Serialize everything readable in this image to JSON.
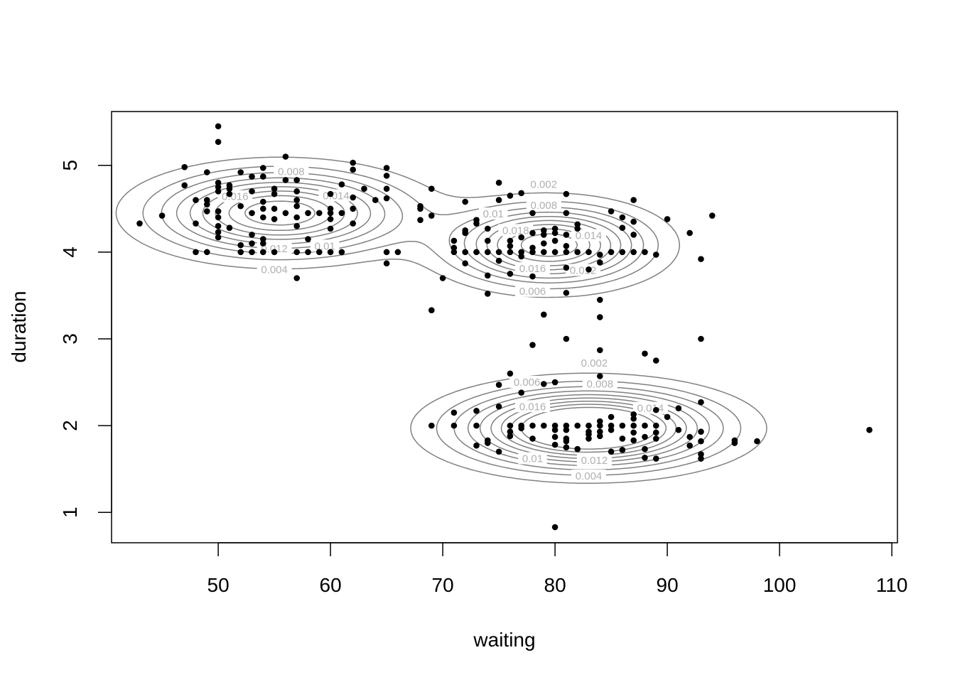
{
  "chart_data": {
    "type": "scatter",
    "title": "",
    "xlabel": "waiting",
    "ylabel": "duration",
    "xlim": [
      40.5,
      110.5
    ],
    "ylim": [
      0.65,
      5.62
    ],
    "x_ticks": [
      50,
      60,
      70,
      80,
      90,
      100,
      110
    ],
    "y_ticks": [
      1,
      2,
      3,
      4,
      5
    ],
    "grid": false,
    "legend": "none",
    "point_color": "#000000",
    "contour_color": "#808080",
    "contour_label_color": "#b0b0b0",
    "contour_components": [
      {
        "center": [
          55.5,
          4.45
        ],
        "sd": [
          6.8,
          0.3
        ],
        "weight": 0.2
      },
      {
        "center": [
          79.5,
          4.08
        ],
        "sd": [
          5.4,
          0.28
        ],
        "weight": 0.2
      },
      {
        "center": [
          83.0,
          1.97
        ],
        "sd": [
          7.0,
          0.28
        ],
        "weight": 0.26
      }
    ],
    "contour_levels": [
      0.002,
      0.004,
      0.006,
      0.008,
      0.01,
      0.012,
      0.014,
      0.016,
      0.018
    ],
    "contour_labels": [
      {
        "text": "0.008",
        "x": 56.5,
        "y": 4.93
      },
      {
        "text": "0.016",
        "x": 51.5,
        "y": 4.64
      },
      {
        "text": "0.014",
        "x": 60.5,
        "y": 4.65
      },
      {
        "text": "0.012",
        "x": 55.0,
        "y": 4.04
      },
      {
        "text": "0.01",
        "x": 59.5,
        "y": 4.07
      },
      {
        "text": "0.004",
        "x": 55.0,
        "y": 3.8
      },
      {
        "text": "0.002",
        "x": 79.0,
        "y": 4.78
      },
      {
        "text": "0.008",
        "x": 79.0,
        "y": 4.54
      },
      {
        "text": "0.01",
        "x": 74.5,
        "y": 4.44
      },
      {
        "text": "0.018",
        "x": 76.5,
        "y": 4.25
      },
      {
        "text": "0.014",
        "x": 83.0,
        "y": 4.19
      },
      {
        "text": "0.016",
        "x": 78.0,
        "y": 3.81
      },
      {
        "text": "0.012",
        "x": 82.5,
        "y": 3.79
      },
      {
        "text": "0.006",
        "x": 78.0,
        "y": 3.55
      },
      {
        "text": "0.002",
        "x": 83.5,
        "y": 2.72
      },
      {
        "text": "0.006",
        "x": 77.5,
        "y": 2.5
      },
      {
        "text": "0.008",
        "x": 84.0,
        "y": 2.48
      },
      {
        "text": "0.016",
        "x": 78.0,
        "y": 2.22
      },
      {
        "text": "0.014",
        "x": 88.5,
        "y": 2.2
      },
      {
        "text": "0.01",
        "x": 78.0,
        "y": 1.62
      },
      {
        "text": "0.012",
        "x": 83.5,
        "y": 1.6
      },
      {
        "text": "0.004",
        "x": 83.0,
        "y": 1.42
      }
    ],
    "points": [
      [
        50,
        5.45
      ],
      [
        50,
        5.27
      ],
      [
        56,
        5.1
      ],
      [
        47,
        4.98
      ],
      [
        54,
        4.97
      ],
      [
        65,
        4.97
      ],
      [
        49,
        4.92
      ],
      [
        52,
        4.92
      ],
      [
        53,
        4.87
      ],
      [
        54,
        4.87
      ],
      [
        65,
        4.88
      ],
      [
        56,
        4.83
      ],
      [
        57,
        4.83
      ],
      [
        50,
        4.8
      ],
      [
        47,
        4.77
      ],
      [
        51,
        4.77
      ],
      [
        50,
        4.75
      ],
      [
        51,
        4.73
      ],
      [
        55,
        4.73
      ],
      [
        50,
        4.7
      ],
      [
        53,
        4.7
      ],
      [
        57,
        4.7
      ],
      [
        51,
        4.67
      ],
      [
        55,
        4.67
      ],
      [
        61,
        4.78
      ],
      [
        62,
        4.95
      ],
      [
        62,
        5.03
      ],
      [
        63,
        4.73
      ],
      [
        65,
        4.73
      ],
      [
        60,
        4.67
      ],
      [
        48,
        4.6
      ],
      [
        49,
        4.6
      ],
      [
        49,
        4.55
      ],
      [
        54,
        4.58
      ],
      [
        57,
        4.6
      ],
      [
        62,
        4.63
      ],
      [
        64,
        4.6
      ],
      [
        65,
        4.62
      ],
      [
        52,
        4.53
      ],
      [
        54,
        4.5
      ],
      [
        55,
        4.5
      ],
      [
        57,
        4.53
      ],
      [
        58,
        4.45
      ],
      [
        59,
        4.45
      ],
      [
        60,
        4.45
      ],
      [
        60,
        4.5
      ],
      [
        61,
        4.45
      ],
      [
        62,
        4.5
      ],
      [
        49,
        4.47
      ],
      [
        50,
        4.47
      ],
      [
        50,
        4.4
      ],
      [
        45,
        4.42
      ],
      [
        53,
        4.45
      ],
      [
        56,
        4.45
      ],
      [
        54,
        4.4
      ],
      [
        55,
        4.38
      ],
      [
        57,
        4.4
      ],
      [
        60,
        4.38
      ],
      [
        43,
        4.33
      ],
      [
        48,
        4.33
      ],
      [
        50,
        4.3
      ],
      [
        51,
        4.28
      ],
      [
        57,
        4.3
      ],
      [
        62,
        4.33
      ],
      [
        60,
        4.27
      ],
      [
        50,
        4.23
      ],
      [
        53,
        4.2
      ],
      [
        50,
        4.17
      ],
      [
        54,
        4.15
      ],
      [
        54,
        4.1
      ],
      [
        53,
        4.1
      ],
      [
        58,
        4.15
      ],
      [
        52,
        4.08
      ],
      [
        48,
        4.0
      ],
      [
        49,
        4.0
      ],
      [
        52,
        4.0
      ],
      [
        53,
        4.0
      ],
      [
        54,
        4.0
      ],
      [
        55,
        4.0
      ],
      [
        57,
        4.0
      ],
      [
        58,
        4.0
      ],
      [
        59,
        4.0
      ],
      [
        60,
        4.0
      ],
      [
        61,
        4.0
      ],
      [
        65,
        4.0
      ],
      [
        66,
        4.0
      ],
      [
        57,
        3.7
      ],
      [
        65,
        3.87
      ],
      [
        68,
        4.53
      ],
      [
        68,
        4.5
      ],
      [
        68,
        4.37
      ],
      [
        69,
        4.42
      ],
      [
        69,
        4.73
      ],
      [
        72,
        4.58
      ],
      [
        75,
        4.8
      ],
      [
        76,
        4.65
      ],
      [
        77,
        4.68
      ],
      [
        75,
        4.6
      ],
      [
        78,
        4.45
      ],
      [
        81,
        4.67
      ],
      [
        85,
        4.47
      ],
      [
        87,
        4.6
      ],
      [
        86,
        4.4
      ],
      [
        81,
        4.45
      ],
      [
        90,
        4.38
      ],
      [
        94,
        4.42
      ],
      [
        92,
        4.22
      ],
      [
        73,
        4.37
      ],
      [
        73,
        4.33
      ],
      [
        74,
        4.27
      ],
      [
        72,
        4.25
      ],
      [
        72,
        4.22
      ],
      [
        71,
        4.13
      ],
      [
        74,
        4.13
      ],
      [
        76,
        4.07
      ],
      [
        71,
        4.05
      ],
      [
        71,
        4.0
      ],
      [
        72,
        4.0
      ],
      [
        73,
        4.0
      ],
      [
        74,
        4.0
      ],
      [
        75,
        4.0
      ],
      [
        76,
        4.0
      ],
      [
        77,
        4.0
      ],
      [
        78,
        4.0
      ],
      [
        79,
        4.0
      ],
      [
        80,
        4.0
      ],
      [
        81,
        4.0
      ],
      [
        82,
        4.0
      ],
      [
        83,
        4.0
      ],
      [
        85,
        4.0
      ],
      [
        86,
        4.0
      ],
      [
        87,
        4.0
      ],
      [
        88,
        4.0
      ],
      [
        89,
        3.97
      ],
      [
        84,
        3.97
      ],
      [
        78,
        4.22
      ],
      [
        79,
        4.25
      ],
      [
        80,
        4.27
      ],
      [
        79,
        4.2
      ],
      [
        80,
        4.22
      ],
      [
        81,
        4.2
      ],
      [
        82,
        4.32
      ],
      [
        82,
        4.27
      ],
      [
        86,
        4.28
      ],
      [
        87,
        4.35
      ],
      [
        87,
        4.2
      ],
      [
        77,
        4.17
      ],
      [
        76,
        4.13
      ],
      [
        78,
        4.05
      ],
      [
        79,
        4.1
      ],
      [
        80,
        4.13
      ],
      [
        81,
        4.07
      ],
      [
        77,
        3.95
      ],
      [
        72,
        3.87
      ],
      [
        74,
        3.73
      ],
      [
        76,
        3.75
      ],
      [
        78,
        3.72
      ],
      [
        81,
        3.82
      ],
      [
        83,
        3.8
      ],
      [
        84,
        3.88
      ],
      [
        75,
        3.9
      ],
      [
        70,
        3.7
      ],
      [
        74,
        3.52
      ],
      [
        81,
        3.53
      ],
      [
        84,
        3.45
      ],
      [
        84,
        3.25
      ],
      [
        79,
        3.28
      ],
      [
        69,
        3.33
      ],
      [
        81,
        3.0
      ],
      [
        93,
        3.92
      ],
      [
        93,
        3.0
      ],
      [
        78,
        2.93
      ],
      [
        84,
        2.87
      ],
      [
        88,
        2.83
      ],
      [
        89,
        2.75
      ],
      [
        84,
        2.57
      ],
      [
        76,
        2.6
      ],
      [
        80,
        2.5
      ],
      [
        79,
        2.48
      ],
      [
        75,
        2.47
      ],
      [
        77,
        2.38
      ],
      [
        93,
        2.27
      ],
      [
        91,
        2.2
      ],
      [
        71,
        2.15
      ],
      [
        73,
        2.17
      ],
      [
        75,
        2.22
      ],
      [
        89,
        2.18
      ],
      [
        90,
        2.1
      ],
      [
        85,
        2.1
      ],
      [
        87,
        2.13
      ],
      [
        87,
        2.08
      ],
      [
        88,
        2.0
      ],
      [
        84,
        2.05
      ],
      [
        69,
        2.0
      ],
      [
        71,
        2.0
      ],
      [
        73,
        2.0
      ],
      [
        76,
        2.0
      ],
      [
        77,
        2.0
      ],
      [
        78,
        2.0
      ],
      [
        79,
        2.0
      ],
      [
        80,
        2.0
      ],
      [
        81,
        2.0
      ],
      [
        82,
        2.0
      ],
      [
        83,
        2.0
      ],
      [
        84,
        2.0
      ],
      [
        85,
        2.0
      ],
      [
        86,
        2.0
      ],
      [
        87,
        2.0
      ],
      [
        89,
        2.0
      ],
      [
        91,
        1.95
      ],
      [
        93,
        1.93
      ],
      [
        76,
        1.93
      ],
      [
        77,
        1.97
      ],
      [
        80,
        1.95
      ],
      [
        81,
        1.95
      ],
      [
        83,
        1.93
      ],
      [
        84,
        1.93
      ],
      [
        85,
        1.95
      ],
      [
        87,
        1.92
      ],
      [
        89,
        1.92
      ],
      [
        76,
        1.88
      ],
      [
        78,
        1.85
      ],
      [
        80,
        1.87
      ],
      [
        83,
        1.9
      ],
      [
        84,
        1.88
      ],
      [
        86,
        1.85
      ],
      [
        87,
        1.83
      ],
      [
        88,
        1.87
      ],
      [
        89,
        1.85
      ],
      [
        92,
        1.87
      ],
      [
        74,
        1.83
      ],
      [
        74,
        1.8
      ],
      [
        80,
        1.78
      ],
      [
        81,
        1.82
      ],
      [
        83,
        1.85
      ],
      [
        93,
        1.82
      ],
      [
        96,
        1.83
      ],
      [
        96,
        1.8
      ],
      [
        98,
        1.82
      ],
      [
        73,
        1.77
      ],
      [
        81,
        1.75
      ],
      [
        82,
        1.73
      ],
      [
        85,
        1.7
      ],
      [
        86,
        1.72
      ],
      [
        88,
        1.73
      ],
      [
        92,
        1.77
      ],
      [
        75,
        1.7
      ],
      [
        93,
        1.67
      ],
      [
        93,
        1.62
      ],
      [
        88,
        1.63
      ],
      [
        89,
        1.62
      ],
      [
        81,
        1.85
      ],
      [
        108,
        1.95
      ],
      [
        80,
        0.83
      ]
    ]
  }
}
